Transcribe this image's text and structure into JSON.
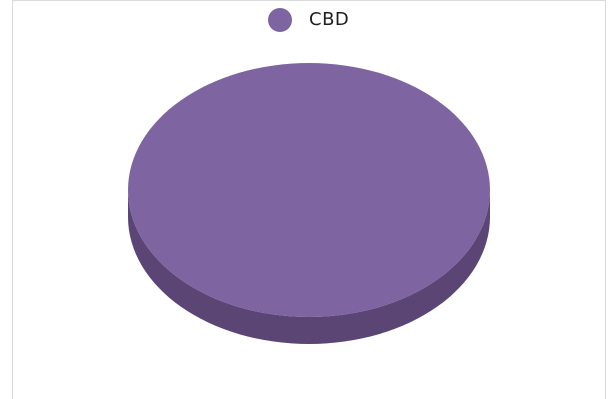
{
  "chart_data": {
    "type": "pie",
    "categories": [
      "CBD"
    ],
    "values": [
      100
    ],
    "colors": [
      "#7e64a1"
    ],
    "side_color": "#5a4575",
    "legend_position": "top",
    "legend": [
      "CBD"
    ],
    "style": "3d"
  }
}
